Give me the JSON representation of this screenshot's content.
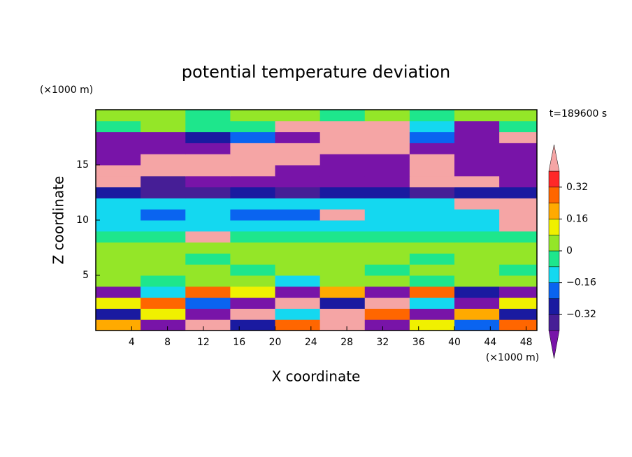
{
  "chart_data": {
    "type": "contourf",
    "title": "potential temperature deviation",
    "xlabel": "X coordinate",
    "ylabel": "Z coordinate",
    "xunit": "(×1000 m)",
    "yunit": "(×1000 m)",
    "annotation": "t=189600 s",
    "xlim": [
      0,
      49.2
    ],
    "ylim": [
      0,
      20
    ],
    "xticks": [
      4,
      8,
      12,
      16,
      20,
      24,
      28,
      32,
      36,
      40,
      44,
      48
    ],
    "yticks": [
      5,
      10,
      15
    ],
    "x": [
      2.5,
      7.5,
      12.5,
      17.5,
      22.5,
      27.5,
      32.5,
      37.5,
      42.5,
      47.5
    ],
    "y": [
      0.5,
      1.5,
      2.5,
      3.5,
      4.5,
      5.5,
      6.5,
      7.5,
      8.5,
      9.5,
      10.5,
      11.5,
      12.5,
      13.5,
      14.5,
      15.5,
      16.5,
      17.5,
      18.5,
      19.5
    ],
    "z": [
      [
        0.2,
        -0.5,
        0.5,
        -0.3,
        0.3,
        0.5,
        -0.5,
        0.1,
        -0.2,
        0.3
      ],
      [
        -0.3,
        0.1,
        -0.5,
        0.5,
        -0.1,
        0.5,
        0.3,
        -0.5,
        0.2,
        -0.3
      ],
      [
        0.1,
        0.3,
        -0.2,
        -0.5,
        0.5,
        -0.3,
        0.5,
        -0.1,
        -0.5,
        0.1
      ],
      [
        -0.5,
        -0.1,
        0.3,
        0.1,
        -0.5,
        0.2,
        -0.5,
        0.3,
        -0.3,
        -0.5
      ],
      [
        0.04,
        -0.04,
        0.04,
        0.04,
        -0.12,
        0.04,
        0.04,
        -0.04,
        0.04,
        0.04
      ],
      [
        0.04,
        0.04,
        0.04,
        -0.04,
        0.04,
        0.04,
        -0.04,
        0.04,
        0.04,
        -0.04
      ],
      [
        0.04,
        0.04,
        -0.04,
        0.04,
        0.04,
        0.04,
        0.04,
        -0.04,
        0.04,
        0.04
      ],
      [
        0.04,
        0.04,
        0.04,
        0.04,
        0.04,
        0.04,
        0.04,
        0.04,
        0.04,
        0.04
      ],
      [
        -0.04,
        -0.04,
        0.5,
        -0.04,
        -0.04,
        -0.04,
        -0.04,
        -0.04,
        -0.04,
        -0.04
      ],
      [
        -0.12,
        -0.12,
        -0.12,
        -0.12,
        -0.12,
        -0.12,
        -0.12,
        -0.12,
        -0.12,
        0.5
      ],
      [
        -0.12,
        -0.2,
        -0.12,
        -0.2,
        -0.2,
        0.5,
        -0.12,
        -0.12,
        -0.12,
        0.5
      ],
      [
        -0.12,
        -0.12,
        -0.12,
        -0.12,
        -0.12,
        -0.12,
        -0.12,
        -0.12,
        0.5,
        0.5
      ],
      [
        -0.28,
        -0.36,
        -0.36,
        -0.28,
        -0.36,
        -0.28,
        -0.28,
        -0.36,
        -0.28,
        -0.28
      ],
      [
        0.5,
        -0.36,
        -0.5,
        -0.5,
        -0.5,
        -0.5,
        -0.5,
        0.5,
        0.5,
        -0.5
      ],
      [
        0.5,
        0.5,
        0.5,
        0.5,
        -0.5,
        -0.5,
        -0.5,
        0.5,
        -0.5,
        -0.5
      ],
      [
        -0.5,
        0.5,
        0.5,
        0.5,
        0.5,
        -0.5,
        -0.5,
        0.5,
        -0.5,
        -0.5
      ],
      [
        -0.5,
        -0.5,
        -0.5,
        0.5,
        0.5,
        0.5,
        0.5,
        -0.5,
        -0.5,
        -0.5
      ],
      [
        -0.5,
        -0.5,
        -0.28,
        -0.2,
        -0.5,
        0.5,
        0.5,
        -0.2,
        -0.5,
        0.5
      ],
      [
        -0.04,
        0.04,
        -0.04,
        -0.04,
        0.5,
        0.5,
        0.5,
        -0.12,
        -0.5,
        -0.04
      ],
      [
        0.04,
        0.04,
        -0.04,
        0.04,
        0.04,
        -0.04,
        0.04,
        -0.04,
        0.04,
        0.04
      ]
    ],
    "levels": [
      -0.4,
      -0.32,
      -0.24,
      -0.16,
      -0.08,
      0,
      0.08,
      0.16,
      0.24,
      0.32,
      0.4
    ],
    "colors": [
      "#7814a8",
      "#461e96",
      "#1a1aa0",
      "#0a64f0",
      "#14d8f0",
      "#1ee68c",
      "#94e628",
      "#f0f000",
      "#ffaa00",
      "#ff6600",
      "#ff2828",
      "#f5a5a5"
    ],
    "colorbar_ticks": [
      {
        "value": -0.32,
        "label": "−0.32"
      },
      {
        "value": -0.16,
        "label": "−0.16"
      },
      0,
      0.16,
      0.32
    ]
  }
}
